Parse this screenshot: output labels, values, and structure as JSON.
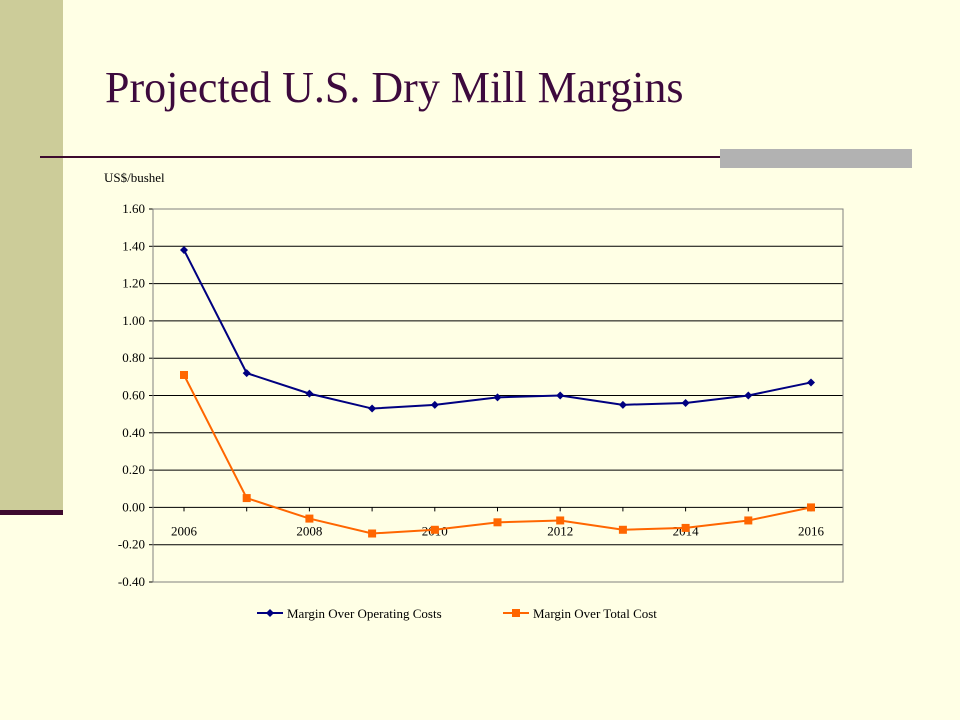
{
  "slide": {
    "title": "Projected U.S. Dry Mill Margins"
  },
  "colors": {
    "background": "#FFFFE5",
    "sidebar": "#CCCC99",
    "title": "#3D0A3D",
    "rule": "#3D0A2E",
    "accent": "#B2B2B2"
  },
  "chart_data": {
    "type": "line",
    "ylabel": "US$/bushel",
    "ylim": [
      -0.4,
      1.6
    ],
    "yticks": [
      "1.60",
      "1.40",
      "1.20",
      "1.00",
      "0.80",
      "0.60",
      "0.40",
      "0.20",
      "0.00",
      "-0.20",
      "-0.40"
    ],
    "x": [
      2006,
      2007,
      2008,
      2009,
      2010,
      2011,
      2012,
      2013,
      2014,
      2015,
      2016
    ],
    "xtick_labels": [
      "2006",
      "2008",
      "2010",
      "2012",
      "2014",
      "2016"
    ],
    "grid": true,
    "legend_position": "bottom",
    "series": [
      {
        "name": "Margin Over Operating Costs",
        "color": "#000080",
        "marker": "diamond",
        "values": [
          1.38,
          0.72,
          0.61,
          0.53,
          0.55,
          0.59,
          0.6,
          0.55,
          0.56,
          0.6,
          0.67
        ]
      },
      {
        "name": "Margin Over Total Cost",
        "color": "#FF6600",
        "marker": "square",
        "values": [
          0.71,
          0.05,
          -0.06,
          -0.14,
          -0.12,
          -0.08,
          -0.07,
          -0.12,
          -0.11,
          -0.07,
          0.0
        ]
      }
    ]
  }
}
